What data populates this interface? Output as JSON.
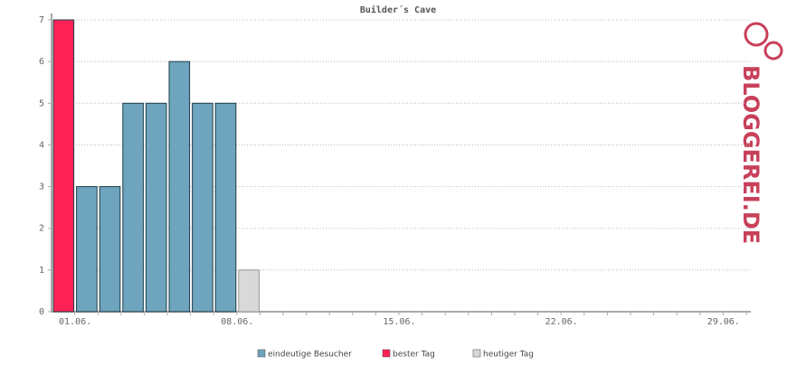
{
  "chart_data": {
    "type": "bar",
    "title": "Builder´s Cave",
    "watermark": "BLOGGEREI.DE",
    "categories": [
      "01.06.",
      null,
      null,
      null,
      null,
      null,
      null,
      "08.06.",
      null,
      null,
      null,
      null,
      null,
      null,
      "15.06.",
      null,
      null,
      null,
      null,
      null,
      null,
      "22.06.",
      null,
      null,
      null,
      null,
      null,
      null,
      "29.06.",
      null
    ],
    "series": [
      {
        "name": "eindeutige Besucher",
        "color": "#6ea4bd",
        "values": [
          null,
          3,
          3,
          5,
          5,
          6,
          5,
          5,
          null,
          null,
          null,
          null,
          null,
          null,
          null,
          null,
          null,
          null,
          null,
          null,
          null,
          null,
          null,
          null,
          null,
          null,
          null,
          null,
          null,
          null
        ]
      },
      {
        "name": "bester Tag",
        "color": "#ff2255",
        "values": [
          7,
          null,
          null,
          null,
          null,
          null,
          null,
          null,
          null,
          null,
          null,
          null,
          null,
          null,
          null,
          null,
          null,
          null,
          null,
          null,
          null,
          null,
          null,
          null,
          null,
          null,
          null,
          null,
          null,
          null
        ]
      },
      {
        "name": "heutiger Tag",
        "color": "#d9d9d9",
        "values": [
          null,
          null,
          null,
          null,
          null,
          null,
          null,
          null,
          1,
          null,
          null,
          null,
          null,
          null,
          null,
          null,
          null,
          null,
          null,
          null,
          null,
          null,
          null,
          null,
          null,
          null,
          null,
          null,
          null,
          null
        ]
      }
    ],
    "ylim": [
      0,
      7
    ],
    "yticks": [
      0,
      1,
      2,
      3,
      4,
      5,
      6,
      7
    ],
    "grid": true
  }
}
